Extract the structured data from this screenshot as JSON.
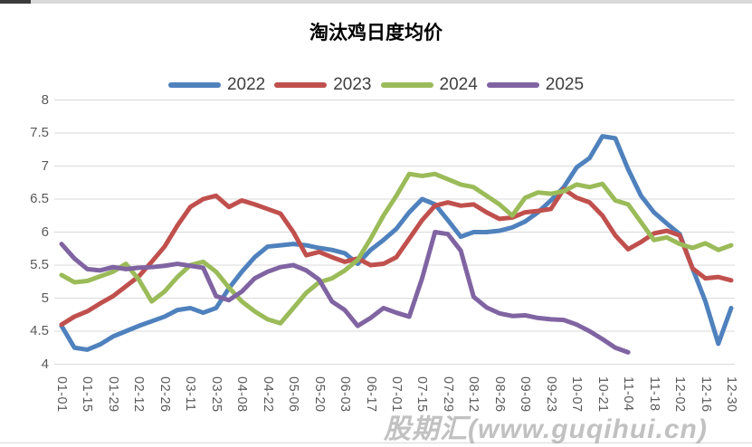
{
  "window": {
    "top_strip_light_color": "#d9d9d9",
    "top_strip_dark_color": "#3b3b3b"
  },
  "title": "淘汰鸡日度均价",
  "watermark_text": "股期汇(www.guqihui.cn)",
  "chart_data": {
    "type": "line",
    "title": "淘汰鸡日度均价",
    "xlabel": "",
    "ylabel": "",
    "ylim": [
      4,
      8
    ],
    "y_ticks": [
      8,
      7.5,
      7,
      6.5,
      6,
      5.5,
      5,
      4.5,
      4
    ],
    "grid": true,
    "grid_color": "#d9d9d9",
    "axis_text_color": "#595959",
    "legend_position": "top-center",
    "x_tick_interval_days": 14,
    "sample_interval_days": 7,
    "x_tick_labels": [
      "01-01",
      "01-15",
      "01-29",
      "02-12",
      "02-26",
      "03-11",
      "03-25",
      "04-08",
      "04-22",
      "05-06",
      "05-20",
      "06-03",
      "06-17",
      "07-01",
      "07-15",
      "07-29",
      "08-12",
      "08-26",
      "09-09",
      "09-23",
      "10-07",
      "10-21",
      "11-04",
      "11-18",
      "12-02",
      "12-16",
      "12-30"
    ],
    "series": [
      {
        "name": "2022",
        "color": "#4F81BD",
        "values": [
          4.58,
          4.25,
          4.22,
          4.3,
          4.42,
          4.5,
          4.58,
          4.65,
          4.72,
          4.82,
          4.85,
          4.78,
          4.85,
          5.15,
          5.4,
          5.62,
          5.78,
          5.8,
          5.82,
          5.8,
          5.76,
          5.73,
          5.68,
          5.52,
          5.73,
          5.88,
          6.05,
          6.3,
          6.5,
          6.42,
          6.18,
          5.93,
          6.0,
          6.0,
          6.02,
          6.07,
          6.16,
          6.3,
          6.48,
          6.68,
          6.98,
          7.12,
          7.45,
          7.42,
          6.95,
          6.55,
          6.3,
          6.13,
          5.97,
          5.45,
          4.95,
          4.31,
          4.85
        ]
      },
      {
        "name": "2023",
        "color": "#C0504D",
        "values": [
          4.6,
          4.72,
          4.8,
          4.92,
          5.03,
          5.18,
          5.33,
          5.55,
          5.78,
          6.1,
          6.38,
          6.5,
          6.55,
          6.38,
          6.48,
          6.42,
          6.35,
          6.28,
          6.0,
          5.65,
          5.7,
          5.62,
          5.55,
          5.6,
          5.5,
          5.52,
          5.62,
          5.9,
          6.18,
          6.4,
          6.45,
          6.4,
          6.42,
          6.3,
          6.2,
          6.22,
          6.3,
          6.32,
          6.35,
          6.65,
          6.52,
          6.45,
          6.25,
          5.95,
          5.74,
          5.85,
          5.98,
          6.02,
          5.95,
          5.45,
          5.3,
          5.32,
          5.27
        ]
      },
      {
        "name": "2024",
        "color": "#9BBB59",
        "values": [
          5.35,
          5.24,
          5.26,
          5.33,
          5.4,
          5.52,
          5.28,
          4.95,
          5.1,
          5.32,
          5.5,
          5.55,
          5.4,
          5.16,
          4.95,
          4.8,
          4.68,
          4.62,
          4.85,
          5.08,
          5.24,
          5.3,
          5.42,
          5.58,
          5.9,
          6.25,
          6.55,
          6.88,
          6.85,
          6.88,
          6.8,
          6.72,
          6.68,
          6.55,
          6.42,
          6.25,
          6.52,
          6.6,
          6.58,
          6.62,
          6.72,
          6.68,
          6.73,
          6.48,
          6.42,
          6.15,
          5.88,
          5.92,
          5.82,
          5.76,
          5.83,
          5.73,
          5.8
        ]
      },
      {
        "name": "2025",
        "color": "#8064A2",
        "values": [
          5.82,
          5.6,
          5.44,
          5.42,
          5.47,
          5.44,
          5.46,
          5.47,
          5.49,
          5.52,
          5.49,
          5.46,
          5.03,
          4.97,
          5.1,
          5.3,
          5.4,
          5.47,
          5.5,
          5.42,
          5.28,
          4.95,
          4.82,
          4.58,
          4.7,
          4.85,
          4.78,
          4.72,
          5.3,
          6.0,
          5.97,
          5.72,
          5.02,
          4.86,
          4.77,
          4.73,
          4.74,
          4.7,
          4.68,
          4.67,
          4.6,
          4.5,
          4.38,
          4.25,
          4.18,
          null,
          null,
          null,
          null,
          null,
          null,
          null,
          null
        ]
      }
    ]
  }
}
